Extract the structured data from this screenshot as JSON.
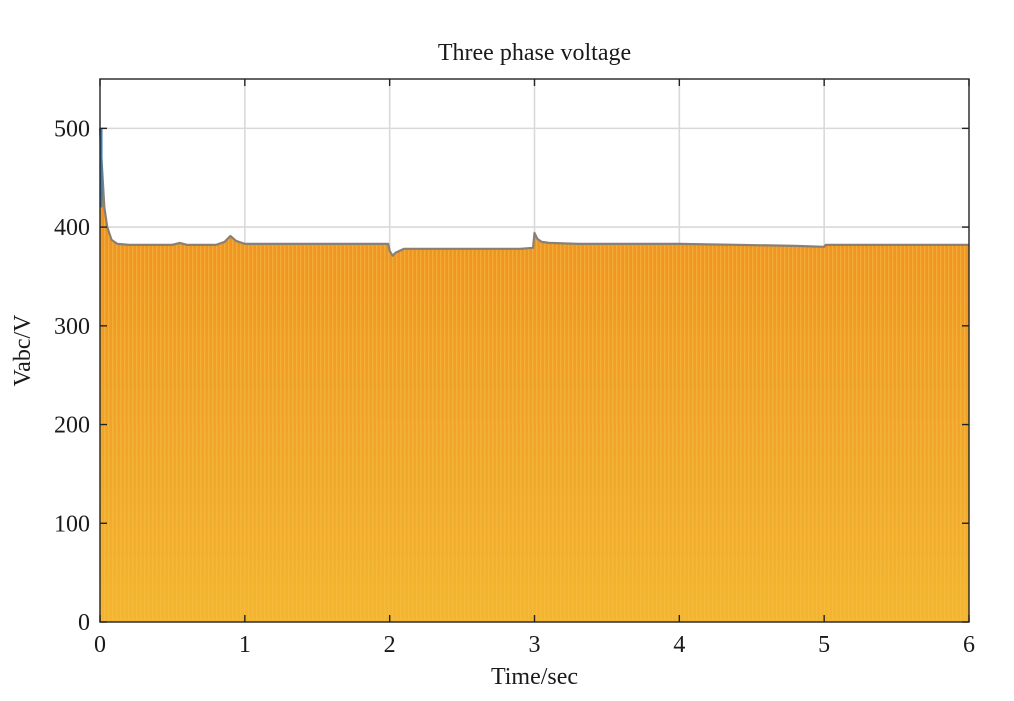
{
  "chart_data": {
    "type": "area",
    "title": "Three phase voltage",
    "xlabel": "Time/sec",
    "ylabel": "Vabc/V",
    "xlim": [
      0,
      6
    ],
    "ylim": [
      0,
      550
    ],
    "xticks": [
      0,
      1,
      2,
      3,
      4,
      5,
      6
    ],
    "yticks": [
      0,
      100,
      200,
      300,
      400,
      500
    ],
    "grid": true,
    "legend": "none",
    "colors": {
      "fill_top": "#ee8a1e",
      "fill_bottom": "#f4b52e",
      "stripe": "#f6c04a",
      "edge_dark": "#8a7f72",
      "spike": "#2f7fb8",
      "grid": "#d9d9d9",
      "frame": "#222222"
    },
    "series": [
      {
        "x": [
          0.0,
          0.01,
          0.02,
          0.03,
          0.05,
          0.08,
          0.12,
          0.2,
          0.3,
          0.4,
          0.5,
          0.55,
          0.6,
          0.7,
          0.8,
          0.86,
          0.9,
          0.94,
          1.0,
          1.2,
          1.5,
          1.8,
          1.99,
          2.0,
          2.02,
          2.04,
          2.1,
          2.3,
          2.6,
          2.9,
          2.99,
          3.0,
          3.02,
          3.05,
          3.1,
          3.3,
          3.6,
          4.0,
          4.4,
          4.8,
          5.0,
          5.01,
          5.3,
          5.7,
          6.0
        ],
        "y": [
          500,
          470,
          445,
          420,
          400,
          387,
          383,
          382,
          382,
          382,
          382,
          384,
          382,
          382,
          382,
          385,
          391,
          386,
          383,
          383,
          383,
          383,
          383,
          376,
          371,
          374,
          378,
          378,
          378,
          378,
          379,
          394,
          388,
          385,
          384,
          383,
          383,
          383,
          382,
          381,
          380,
          382,
          382,
          382,
          382
        ]
      }
    ]
  }
}
